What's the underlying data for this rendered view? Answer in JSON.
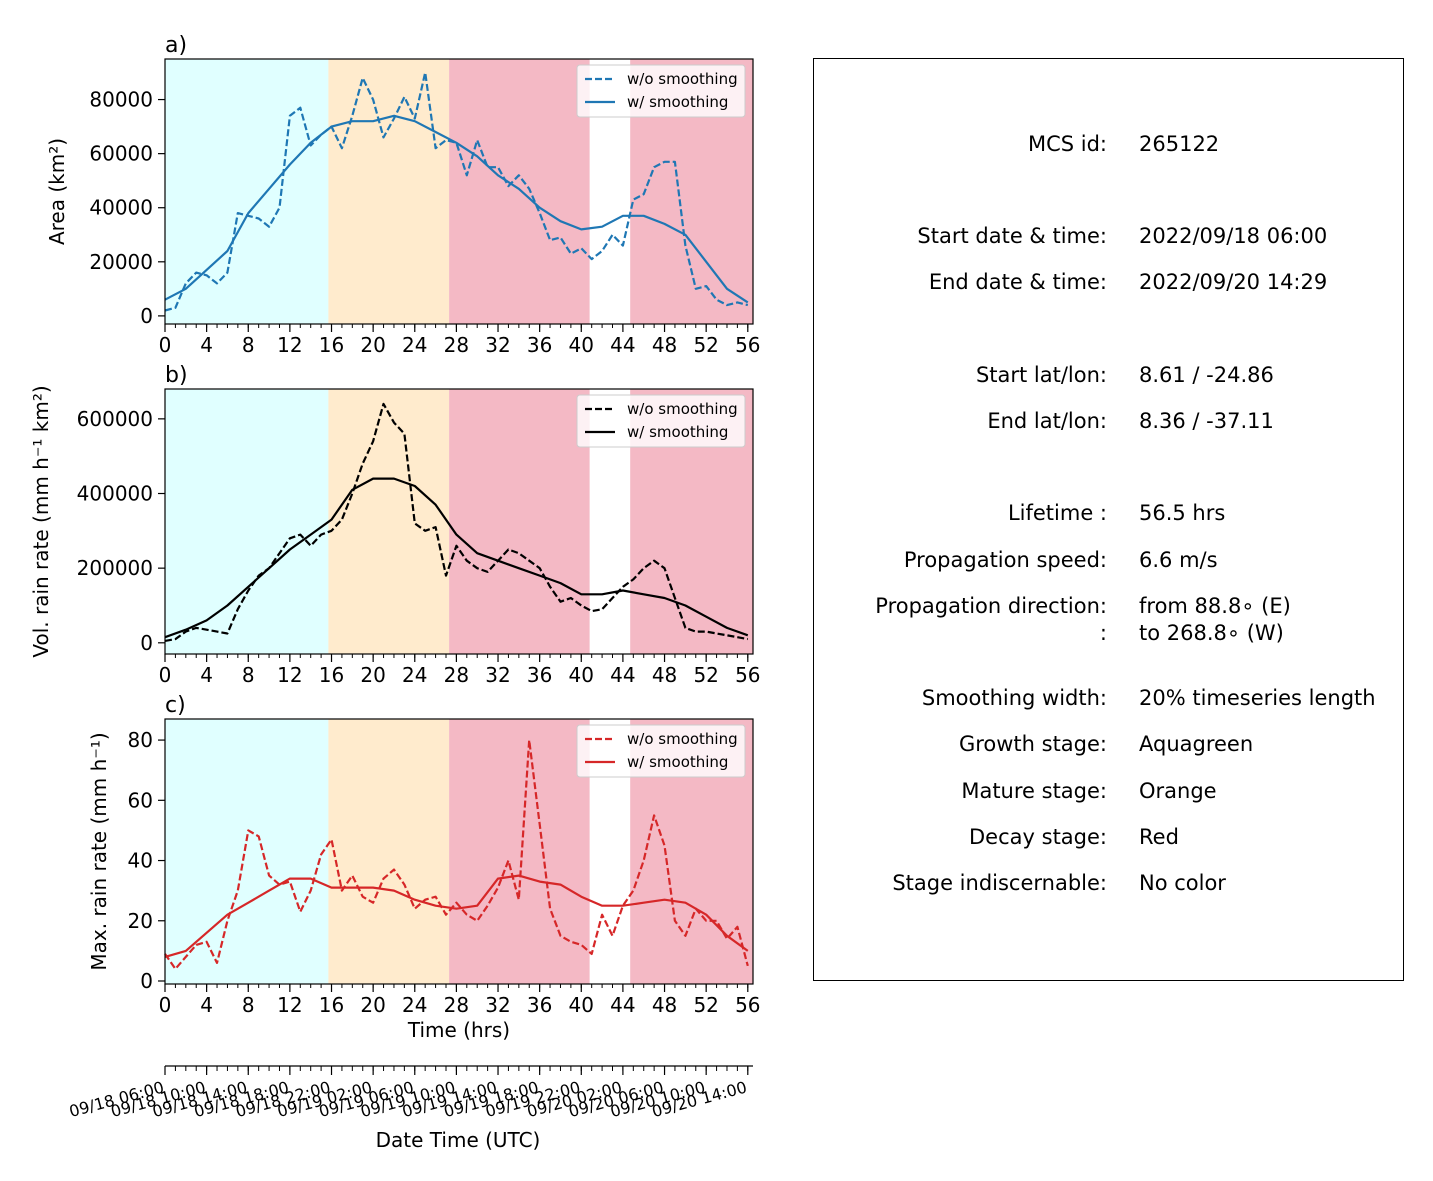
{
  "colors": {
    "blue": "#1f77b4",
    "black": "#000000",
    "red": "#d62728",
    "growth": "#e0ffff",
    "mature": "#ffebcd",
    "decay": "#f4b9c5"
  },
  "stage_spans": [
    {
      "stage": "growth",
      "from": 0,
      "to": 15.7
    },
    {
      "stage": "mature",
      "from": 15.7,
      "to": 27.3
    },
    {
      "stage": "decay",
      "from": 27.3,
      "to": 40.8
    },
    {
      "stage": "decay",
      "from": 44.7,
      "to": 56.5
    }
  ],
  "x_ticks": [
    0,
    4,
    8,
    12,
    16,
    20,
    24,
    28,
    32,
    36,
    40,
    44,
    48,
    52,
    56
  ],
  "x_label": "Time (hrs)",
  "date_axis": {
    "label": "Date Time (UTC)",
    "ticks": [
      "09/18 06:00",
      "09/18 10:00",
      "09/18 14:00",
      "09/18 18:00",
      "09/18 22:00",
      "09/19 02:00",
      "09/19 06:00",
      "09/19 10:00",
      "09/19 14:00",
      "09/19 18:00",
      "09/19 22:00",
      "09/20 02:00",
      "09/20 06:00",
      "09/20 10:00",
      "09/20 14:00"
    ]
  },
  "legend": {
    "raw": "w/o smoothing",
    "smooth": "w/ smoothing"
  },
  "chart_data": [
    {
      "type": "line",
      "panel": "a)",
      "ylabel": "Area  (km²)",
      "xlim": [
        0,
        56.5
      ],
      "ylim": [
        -3000,
        95000
      ],
      "yticks": [
        0,
        20000,
        40000,
        60000,
        80000
      ],
      "legend_position": "top-right",
      "series": [
        {
          "name": "w/o smoothing",
          "style": "dashed",
          "color": "#1f77b4",
          "x": [
            0,
            1,
            2,
            3,
            4,
            5,
            6,
            7,
            8,
            9,
            10,
            11,
            12,
            13,
            14,
            15,
            16,
            17,
            18,
            19,
            20,
            21,
            22,
            23,
            24,
            25,
            26,
            27,
            28,
            29,
            30,
            31,
            32,
            33,
            34,
            35,
            36,
            37,
            38,
            39,
            40,
            41,
            42,
            43,
            44,
            45,
            46,
            47,
            48,
            49,
            50,
            51,
            52,
            53,
            54,
            55,
            56
          ],
          "y": [
            2000,
            3000,
            12000,
            16000,
            15000,
            12000,
            16000,
            38000,
            37000,
            36000,
            33000,
            40000,
            74000,
            77000,
            63000,
            67000,
            70000,
            62000,
            74000,
            88000,
            80000,
            66000,
            73000,
            81000,
            73000,
            90000,
            62000,
            65000,
            64000,
            52000,
            65000,
            55000,
            55000,
            48000,
            52000,
            47000,
            38000,
            28000,
            29000,
            23000,
            25000,
            21000,
            24000,
            30000,
            26000,
            43000,
            45000,
            55000,
            57000,
            57000,
            26000,
            10000,
            11000,
            6000,
            4000,
            5000,
            4000
          ]
        },
        {
          "name": "w/ smoothing",
          "style": "solid",
          "color": "#1f77b4",
          "x": [
            0,
            2,
            4,
            6,
            8,
            10,
            12,
            14,
            16,
            18,
            20,
            22,
            24,
            26,
            28,
            30,
            32,
            34,
            36,
            38,
            40,
            42,
            44,
            46,
            48,
            50,
            52,
            54,
            56
          ],
          "y": [
            6000,
            10000,
            17000,
            24000,
            38000,
            47000,
            56000,
            64000,
            70000,
            72000,
            72000,
            74000,
            72000,
            68000,
            64000,
            59000,
            52000,
            47000,
            40000,
            35000,
            32000,
            33000,
            37000,
            37000,
            34000,
            30000,
            20000,
            10000,
            5000
          ]
        }
      ]
    },
    {
      "type": "line",
      "panel": "b)",
      "ylabel": "Vol. rain rate (mm h⁻¹ km²)",
      "xlim": [
        0,
        56.5
      ],
      "ylim": [
        -30000,
        680000
      ],
      "yticks": [
        0,
        200000,
        400000,
        600000
      ],
      "legend_position": "top-right",
      "series": [
        {
          "name": "w/o smoothing",
          "style": "dashed",
          "color": "#000000",
          "x": [
            0,
            1,
            2,
            3,
            4,
            5,
            6,
            7,
            8,
            9,
            10,
            11,
            12,
            13,
            14,
            15,
            16,
            17,
            18,
            19,
            20,
            21,
            22,
            23,
            24,
            25,
            26,
            27,
            28,
            29,
            30,
            31,
            32,
            33,
            34,
            35,
            36,
            37,
            38,
            39,
            40,
            41,
            42,
            43,
            44,
            45,
            46,
            47,
            48,
            49,
            50,
            51,
            52,
            53,
            54,
            55,
            56
          ],
          "y": [
            5000,
            10000,
            30000,
            40000,
            35000,
            30000,
            25000,
            90000,
            140000,
            180000,
            200000,
            240000,
            280000,
            290000,
            260000,
            290000,
            300000,
            330000,
            400000,
            480000,
            540000,
            640000,
            590000,
            560000,
            320000,
            300000,
            310000,
            180000,
            260000,
            220000,
            200000,
            190000,
            220000,
            250000,
            240000,
            220000,
            200000,
            150000,
            110000,
            120000,
            100000,
            85000,
            90000,
            120000,
            150000,
            170000,
            200000,
            220000,
            200000,
            120000,
            40000,
            30000,
            30000,
            25000,
            20000,
            15000,
            10000
          ]
        },
        {
          "name": "w/ smoothing",
          "style": "solid",
          "color": "#000000",
          "x": [
            0,
            2,
            4,
            6,
            8,
            10,
            12,
            14,
            16,
            18,
            20,
            22,
            24,
            26,
            28,
            30,
            32,
            34,
            36,
            38,
            40,
            42,
            44,
            46,
            48,
            50,
            52,
            54,
            56
          ],
          "y": [
            15000,
            35000,
            60000,
            100000,
            150000,
            200000,
            250000,
            290000,
            330000,
            410000,
            440000,
            440000,
            420000,
            370000,
            290000,
            240000,
            220000,
            200000,
            180000,
            160000,
            130000,
            130000,
            140000,
            130000,
            120000,
            100000,
            70000,
            40000,
            20000
          ]
        }
      ]
    },
    {
      "type": "line",
      "panel": "c)",
      "ylabel": "Max. rain rate  (mm h⁻¹)",
      "xlim": [
        0,
        56.5
      ],
      "ylim": [
        -1,
        87
      ],
      "yticks": [
        0,
        20,
        40,
        60,
        80
      ],
      "legend_position": "top-right",
      "series": [
        {
          "name": "w/o smoothing",
          "style": "dashed",
          "color": "#d62728",
          "x": [
            0,
            1,
            2,
            3,
            4,
            5,
            6,
            7,
            8,
            9,
            10,
            11,
            12,
            13,
            14,
            15,
            16,
            17,
            18,
            19,
            20,
            21,
            22,
            23,
            24,
            25,
            26,
            27,
            28,
            29,
            30,
            31,
            32,
            33,
            34,
            35,
            36,
            37,
            38,
            39,
            40,
            41,
            42,
            43,
            44,
            45,
            46,
            47,
            48,
            49,
            50,
            51,
            52,
            53,
            54,
            55,
            56
          ],
          "y": [
            9,
            4,
            8,
            12,
            13,
            6,
            20,
            30,
            50,
            48,
            35,
            32,
            33,
            23,
            30,
            42,
            47,
            30,
            35,
            28,
            26,
            34,
            37,
            32,
            24,
            27,
            28,
            22,
            26,
            22,
            20,
            25,
            31,
            40,
            27,
            80,
            52,
            24,
            15,
            13,
            12,
            9,
            22,
            15,
            25,
            30,
            40,
            55,
            45,
            20,
            15,
            24,
            20,
            20,
            14,
            18,
            5
          ]
        },
        {
          "name": "w/ smoothing",
          "style": "solid",
          "color": "#d62728",
          "x": [
            0,
            2,
            4,
            6,
            8,
            10,
            12,
            14,
            16,
            18,
            20,
            22,
            24,
            26,
            28,
            30,
            32,
            34,
            36,
            38,
            40,
            42,
            44,
            46,
            48,
            50,
            52,
            54,
            56
          ],
          "y": [
            8,
            10,
            16,
            22,
            26,
            30,
            34,
            34,
            31,
            31,
            31,
            30,
            27,
            25,
            24,
            25,
            34,
            35,
            33,
            32,
            28,
            25,
            25,
            26,
            27,
            26,
            22,
            15,
            10
          ]
        }
      ]
    }
  ],
  "info": {
    "rows": [
      {
        "label": "MCS id:",
        "value": "265122"
      },
      {
        "label": "Start date & time:",
        "value": "2022/09/18 06:00"
      },
      {
        "label": "End date & time:",
        "value": "2022/09/20 14:29"
      },
      {
        "label": "Start lat/lon:",
        "value": "8.61 / -24.86"
      },
      {
        "label": "End lat/lon:",
        "value": "8.36 / -37.11"
      },
      {
        "label": "Lifetime :",
        "value": "56.5 hrs"
      },
      {
        "label": "Propagation speed:",
        "value": "6.6 m/s"
      },
      {
        "label": "Propagation direction:",
        "value": "from  88.8∘ (E)"
      },
      {
        "label": ":",
        "value": "to   268.8∘ (W)"
      },
      {
        "label": "Smoothing width:",
        "value": "20% timeseries length"
      },
      {
        "label": "Growth stage:",
        "value": "Aquagreen"
      },
      {
        "label": "Mature stage:",
        "value": "Orange"
      },
      {
        "label": "Decay stage:",
        "value": "Red"
      },
      {
        "label": "Stage indiscernable:",
        "value": "No color"
      }
    ]
  }
}
